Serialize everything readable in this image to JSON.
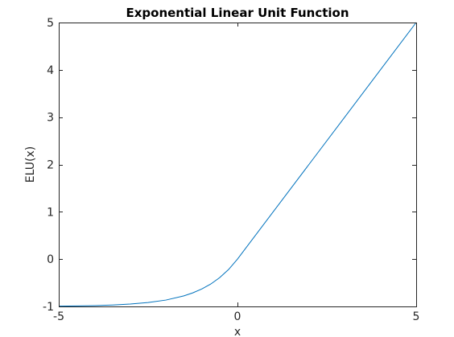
{
  "chart_data": {
    "type": "line",
    "title": "Exponential Linear Unit Function",
    "xlabel": "x",
    "ylabel": "ELU(x)",
    "xlim": [
      -5,
      5
    ],
    "ylim": [
      -1,
      5
    ],
    "xticks": [
      "-5",
      "0",
      "5"
    ],
    "yticks": [
      "-1",
      "0",
      "1",
      "2",
      "3",
      "4",
      "5"
    ],
    "grid": false,
    "legend": "none",
    "series": [
      {
        "color": "#0072bd",
        "x": [
          -5,
          -4.5,
          -4,
          -3.5,
          -3,
          -2.5,
          -2,
          -1.5,
          -1.25,
          -1,
          -0.75,
          -0.5,
          -0.25,
          0,
          1,
          2,
          3,
          4,
          5
        ],
        "y": [
          -0.993,
          -0.989,
          -0.982,
          -0.97,
          -0.95,
          -0.918,
          -0.865,
          -0.777,
          -0.713,
          -0.632,
          -0.528,
          -0.393,
          -0.221,
          0,
          1,
          2,
          3,
          4,
          5
        ]
      }
    ]
  }
}
